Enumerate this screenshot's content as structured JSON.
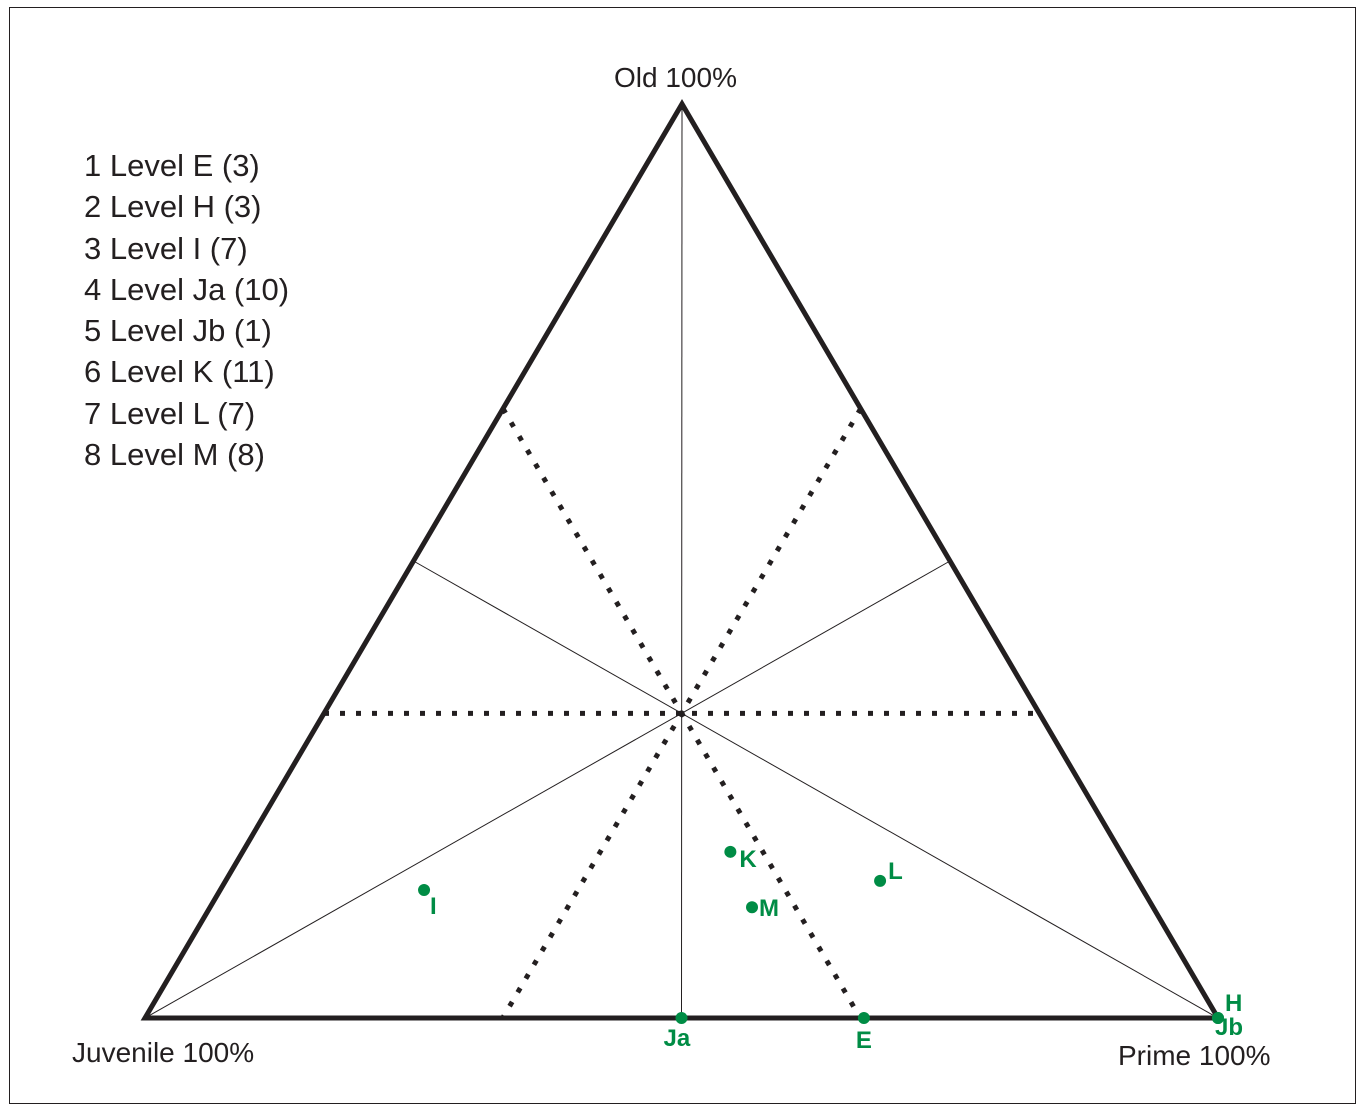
{
  "chart_data": {
    "type": "scatter",
    "subtype": "ternary",
    "vertices": {
      "top": "Old 100%",
      "left": "Juvenile 100%",
      "right": "Prime 100%"
    },
    "components": [
      "Juvenile",
      "Prime",
      "Old"
    ],
    "legend": [
      "1 Level E (3)",
      "2 Level H (3)",
      "3 Level I (7)",
      "4 Level Ja (10)",
      "5 Level Jb (1)",
      "6 Level K (11)",
      "7 Level L (7)",
      "8 Level M (8)"
    ],
    "legend_position": "top-left",
    "series_color": "#008c45",
    "points": [
      {
        "label": "E",
        "juvenile": 33,
        "prime": 67,
        "old": 0
      },
      {
        "label": "H",
        "juvenile": 0,
        "prime": 100,
        "old": 0
      },
      {
        "label": "I",
        "juvenile": 67,
        "prime": 19,
        "old": 14
      },
      {
        "label": "Ja",
        "juvenile": 50,
        "prime": 50,
        "old": 0
      },
      {
        "label": "Jb",
        "juvenile": 0,
        "prime": 100,
        "old": 0
      },
      {
        "label": "K",
        "juvenile": 36,
        "prime": 45,
        "old": 18
      },
      {
        "label": "L",
        "juvenile": 24,
        "prime": 61,
        "old": 15
      },
      {
        "label": "M",
        "juvenile": 37,
        "prime": 50,
        "old": 12
      }
    ]
  }
}
